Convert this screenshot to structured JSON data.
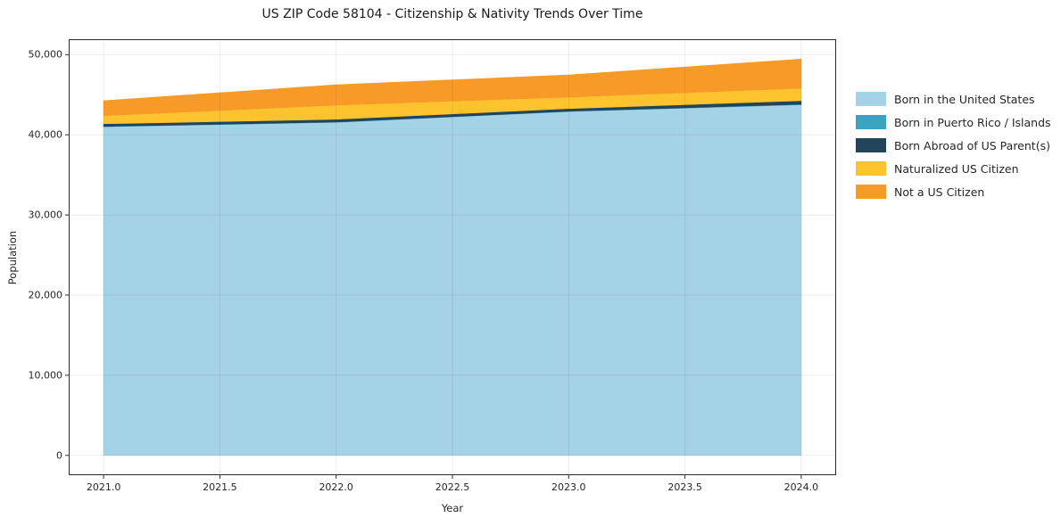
{
  "title": "US ZIP Code 58104 - Citizenship & Nativity Trends Over Time",
  "chart_data": {
    "type": "area",
    "stacked": true,
    "title": "US ZIP Code 58104 - Citizenship & Nativity Trends Over Time",
    "xlabel": "Year",
    "ylabel": "Population",
    "x": [
      2021,
      2022,
      2023,
      2024
    ],
    "series": [
      {
        "name": "Born in the United States",
        "color": "#a4d2e6",
        "values": [
          41000,
          41550,
          42900,
          43750
        ]
      },
      {
        "name": "Born in Puerto Rico / Islands",
        "color": "#3aa3bf",
        "values": [
          40,
          40,
          40,
          50
        ]
      },
      {
        "name": "Born Abroad of US Parent(s)",
        "color": "#21445a",
        "values": [
          330,
          340,
          330,
          450
        ]
      },
      {
        "name": "Naturalized US Citizen",
        "color": "#fcc32f",
        "values": [
          1000,
          1770,
          1430,
          1550
        ]
      },
      {
        "name": "Not a US Citizen",
        "color": "#f79a28",
        "values": [
          1880,
          2540,
          2770,
          3650
        ]
      }
    ],
    "xlim": [
      2020.85,
      2024.15
    ],
    "ylim": [
      -2472,
      51922
    ],
    "x_ticks": [
      2021.0,
      2021.5,
      2022.0,
      2022.5,
      2023.0,
      2023.5,
      2024.0
    ],
    "x_tick_labels": [
      "2021.0",
      "2021.5",
      "2022.0",
      "2022.5",
      "2023.0",
      "2023.5",
      "2024.0"
    ],
    "y_ticks": [
      0,
      10000,
      20000,
      30000,
      40000,
      50000
    ],
    "y_tick_labels": [
      "0",
      "10,000",
      "20,000",
      "30,000",
      "40,000",
      "50,000"
    ],
    "grid": true,
    "grid_color": "rgba(0,0,0,0.07)",
    "spine_color": "#2b2b2b",
    "legend_position": "outside-right"
  }
}
